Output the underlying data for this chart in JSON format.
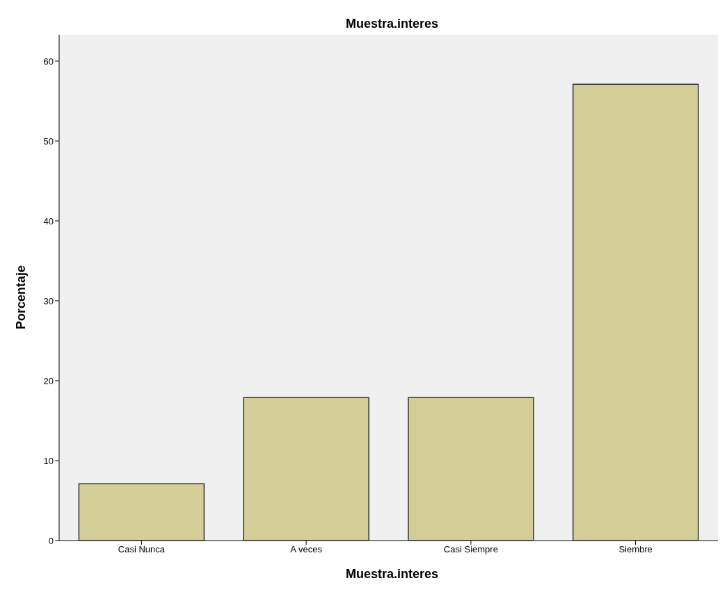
{
  "chart_data": {
    "type": "bar",
    "title": "Muestra.interes",
    "xlabel": "Muestra.interes",
    "ylabel": "Porcentaje",
    "categories": [
      "Casi Nunca",
      "A veces",
      "Casi Siempre",
      "Siembre"
    ],
    "values": [
      7.1,
      17.9,
      17.9,
      57.1
    ],
    "color": "#d3ce97",
    "ylim": [
      0,
      63.3
    ],
    "yticks": [
      0,
      10,
      20,
      30,
      40,
      50,
      60
    ],
    "grid": false
  }
}
